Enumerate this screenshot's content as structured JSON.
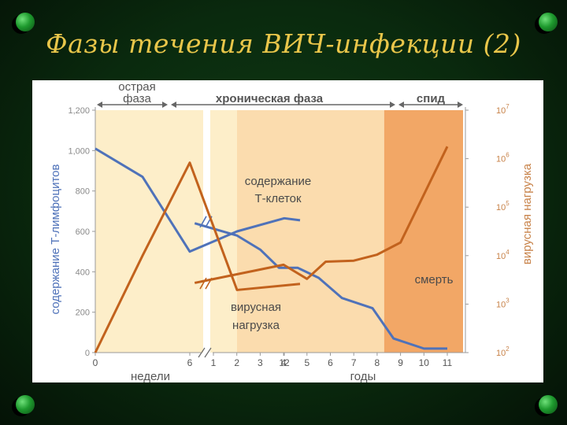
{
  "slide": {
    "title": "Фазы течения ВИЧ-инфекции (2)",
    "background": "#0a2a0e",
    "title_color": "#e9c64a",
    "bullet_color": "#1e9a2e"
  },
  "chart_data": {
    "type": "line",
    "colors": {
      "acute": "#fdeec9",
      "chronic": "#fbdcae",
      "aids": "#f2a766",
      "t_cells": "#4f72b9",
      "viral_load": "#c2621d",
      "axis_text": "#8a8a8a",
      "phase_text": "#555555"
    },
    "phases": [
      {
        "label": "острая фаза",
        "lines": [
          "острая",
          "фаза"
        ],
        "from": 0,
        "to": 9
      },
      {
        "label": "хроническая фаза",
        "lines": [
          "хроническая фаза"
        ],
        "from": 9,
        "to": 8.3
      },
      {
        "label": "спид",
        "lines": [
          "спид"
        ],
        "from": 8.3,
        "to": 11
      }
    ],
    "x_weeks_ticks": [
      "0",
      "6",
      "12"
    ],
    "x_years_ticks": [
      "1",
      "2",
      "3",
      "4",
      "5",
      "6",
      "7",
      "8",
      "9",
      "10",
      "11"
    ],
    "xlabel_weeks": "недели",
    "xlabel_years": "годы",
    "ylabel_left": "содержание Т-лимфоцитов",
    "ylabel_right": "вирусная нагрузка",
    "y_left_ticks": [
      "0",
      "200",
      "400",
      "600",
      "800",
      "1,000",
      "1,200"
    ],
    "y_left_range": [
      0,
      1200
    ],
    "y_right_ticks": [
      {
        "base": "10",
        "exp": "2"
      },
      {
        "base": "10",
        "exp": "3"
      },
      {
        "base": "10",
        "exp": "4"
      },
      {
        "base": "10",
        "exp": "5"
      },
      {
        "base": "10",
        "exp": "6"
      },
      {
        "base": "10",
        "exp": "7"
      }
    ],
    "annotations": {
      "t_cells_label": [
        "содержание",
        "Т-клеток"
      ],
      "viral_label": [
        "вирусная",
        "нагрузка"
      ],
      "death_label": "смерть"
    },
    "series": [
      {
        "key": "t_cells",
        "axis": "left",
        "weeks": [
          [
            0,
            1010
          ],
          [
            3,
            870
          ],
          [
            6,
            500
          ],
          [
            9,
            600
          ],
          [
            12,
            665
          ],
          [
            13,
            655
          ]
        ],
        "years": [
          [
            0.2,
            640
          ],
          [
            2,
            580
          ],
          [
            3,
            510
          ],
          [
            3.8,
            420
          ],
          [
            4.6,
            420
          ],
          [
            5.5,
            370
          ],
          [
            6.5,
            270
          ],
          [
            7.8,
            220
          ],
          [
            8.7,
            70
          ],
          [
            10,
            20
          ],
          [
            11,
            20
          ]
        ]
      },
      {
        "key": "viral_load",
        "axis": "left",
        "weeks": [
          [
            0,
            0
          ],
          [
            3,
            480
          ],
          [
            6,
            940
          ],
          [
            9,
            310
          ],
          [
            13,
            340
          ]
        ],
        "years": [
          [
            0.2,
            345
          ],
          [
            4,
            435
          ],
          [
            5,
            365
          ],
          [
            5.8,
            450
          ],
          [
            7,
            455
          ],
          [
            8,
            485
          ],
          [
            9,
            545
          ],
          [
            11,
            1020
          ]
        ]
      }
    ]
  }
}
